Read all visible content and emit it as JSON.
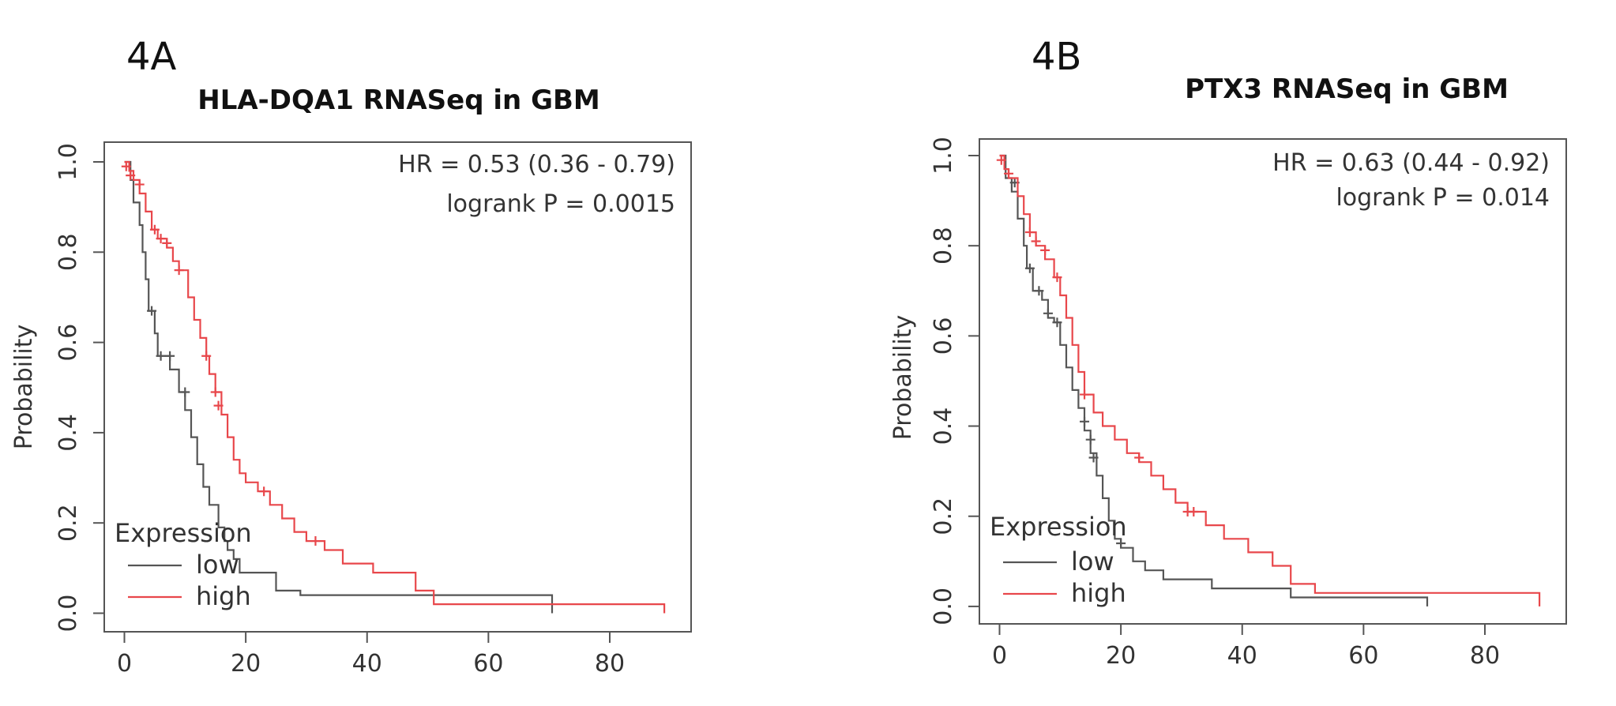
{
  "chart_data": [
    {
      "type": "line",
      "panel_label": "4A",
      "title": "HLA-DQA1 RNASeq in GBM",
      "ylabel": "Probability",
      "xlim": [
        0,
        90
      ],
      "ylim": [
        0,
        1
      ],
      "x_ticks": [
        0,
        20,
        40,
        60,
        80
      ],
      "y_ticks": [
        0.0,
        0.2,
        0.4,
        0.6,
        0.8,
        1.0
      ],
      "x_tick_labels": [
        "0",
        "20",
        "40",
        "60",
        "80"
      ],
      "y_tick_labels": [
        "0.0",
        "0.2",
        "0.4",
        "0.6",
        "0.8",
        "1.0"
      ],
      "stats": [
        "HR = 0.53 (0.36 - 0.79)",
        "logrank P = 0.0015"
      ],
      "legend": {
        "title": "Expression",
        "position": "bottom-left"
      },
      "series": [
        {
          "name": "low",
          "color": "#555555",
          "steps": [
            [
              0,
              1.0
            ],
            [
              1,
              0.96
            ],
            [
              1.5,
              0.91
            ],
            [
              2.5,
              0.86
            ],
            [
              3,
              0.8
            ],
            [
              3.5,
              0.74
            ],
            [
              4,
              0.67
            ],
            [
              5,
              0.62
            ],
            [
              5.5,
              0.57
            ],
            [
              7.5,
              0.54
            ],
            [
              9,
              0.49
            ],
            [
              10,
              0.45
            ],
            [
              11,
              0.39
            ],
            [
              12,
              0.33
            ],
            [
              13,
              0.28
            ],
            [
              14,
              0.24
            ],
            [
              15.5,
              0.19
            ],
            [
              16.5,
              0.16
            ],
            [
              17,
              0.14
            ],
            [
              18,
              0.12
            ],
            [
              19,
              0.09
            ],
            [
              25,
              0.05
            ],
            [
              29,
              0.04
            ],
            [
              70.5,
              0.04
            ],
            [
              70.5,
              0.0
            ]
          ],
          "censors": [
            [
              4.5,
              0.67
            ],
            [
              6,
              0.57
            ],
            [
              7.5,
              0.57
            ],
            [
              10,
              0.49
            ]
          ]
        },
        {
          "name": "high",
          "color": "#e8474b",
          "steps": [
            [
              0,
              1.0
            ],
            [
              0.8,
              0.98
            ],
            [
              1.5,
              0.96
            ],
            [
              2.5,
              0.93
            ],
            [
              3.5,
              0.89
            ],
            [
              4.5,
              0.85
            ],
            [
              5.5,
              0.83
            ],
            [
              7,
              0.81
            ],
            [
              8,
              0.78
            ],
            [
              9,
              0.76
            ],
            [
              10.5,
              0.7
            ],
            [
              11.5,
              0.65
            ],
            [
              12.5,
              0.61
            ],
            [
              13.5,
              0.57
            ],
            [
              14,
              0.53
            ],
            [
              15,
              0.49
            ],
            [
              16,
              0.44
            ],
            [
              17,
              0.39
            ],
            [
              18,
              0.34
            ],
            [
              19,
              0.31
            ],
            [
              20,
              0.29
            ],
            [
              22,
              0.27
            ],
            [
              24,
              0.24
            ],
            [
              26,
              0.21
            ],
            [
              28,
              0.18
            ],
            [
              30,
              0.16
            ],
            [
              33,
              0.14
            ],
            [
              36,
              0.11
            ],
            [
              41,
              0.09
            ],
            [
              48,
              0.05
            ],
            [
              51,
              0.02
            ],
            [
              89,
              0.02
            ],
            [
              89,
              0.0
            ]
          ],
          "censors": [
            [
              0.3,
              0.99
            ],
            [
              1,
              0.97
            ],
            [
              2.5,
              0.95
            ],
            [
              5,
              0.85
            ],
            [
              6,
              0.83
            ],
            [
              7,
              0.82
            ],
            [
              9,
              0.76
            ],
            [
              13.5,
              0.57
            ],
            [
              15,
              0.49
            ],
            [
              15.5,
              0.46
            ],
            [
              23,
              0.27
            ],
            [
              31.5,
              0.16
            ]
          ]
        }
      ]
    },
    {
      "type": "line",
      "panel_label": "4B",
      "title": "PTX3 RNASeq in GBM",
      "ylabel": "Probability",
      "xlim": [
        0,
        90
      ],
      "ylim": [
        0,
        1
      ],
      "x_ticks": [
        0,
        20,
        40,
        60,
        80
      ],
      "y_ticks": [
        0.0,
        0.2,
        0.4,
        0.6,
        0.8,
        1.0
      ],
      "x_tick_labels": [
        "0",
        "20",
        "40",
        "60",
        "80"
      ],
      "y_tick_labels": [
        "0.0",
        "0.2",
        "0.4",
        "0.6",
        "0.8",
        "1.0"
      ],
      "stats": [
        "HR = 0.63 (0.44 - 0.92)",
        "logrank P = 0.014"
      ],
      "legend": {
        "title": "Expression",
        "position": "bottom-left"
      },
      "series": [
        {
          "name": "low",
          "color": "#555555",
          "steps": [
            [
              0,
              1.0
            ],
            [
              1,
              0.95
            ],
            [
              2,
              0.92
            ],
            [
              3,
              0.86
            ],
            [
              4,
              0.8
            ],
            [
              4.5,
              0.75
            ],
            [
              5.5,
              0.7
            ],
            [
              7,
              0.68
            ],
            [
              8,
              0.64
            ],
            [
              9,
              0.63
            ],
            [
              10,
              0.58
            ],
            [
              11,
              0.53
            ],
            [
              12,
              0.48
            ],
            [
              13,
              0.44
            ],
            [
              14,
              0.39
            ],
            [
              15,
              0.34
            ],
            [
              16,
              0.29
            ],
            [
              17,
              0.24
            ],
            [
              18,
              0.19
            ],
            [
              19,
              0.15
            ],
            [
              20,
              0.13
            ],
            [
              22,
              0.1
            ],
            [
              24,
              0.08
            ],
            [
              27,
              0.06
            ],
            [
              35,
              0.04
            ],
            [
              48,
              0.02
            ],
            [
              70.5,
              0.02
            ],
            [
              70.5,
              0.0
            ]
          ],
          "censors": [
            [
              2.5,
              0.94
            ],
            [
              5,
              0.75
            ],
            [
              6.5,
              0.7
            ],
            [
              8,
              0.65
            ],
            [
              9.5,
              0.63
            ],
            [
              14,
              0.41
            ],
            [
              15,
              0.37
            ],
            [
              15.5,
              0.33
            ],
            [
              20,
              0.14
            ]
          ]
        },
        {
          "name": "high",
          "color": "#e8474b",
          "steps": [
            [
              0,
              1.0
            ],
            [
              0.8,
              0.97
            ],
            [
              1.5,
              0.95
            ],
            [
              3,
              0.91
            ],
            [
              4,
              0.87
            ],
            [
              5,
              0.83
            ],
            [
              6,
              0.8
            ],
            [
              7.5,
              0.77
            ],
            [
              9,
              0.73
            ],
            [
              10,
              0.69
            ],
            [
              11,
              0.64
            ],
            [
              12,
              0.58
            ],
            [
              13,
              0.52
            ],
            [
              14,
              0.47
            ],
            [
              15.5,
              0.43
            ],
            [
              17,
              0.4
            ],
            [
              19,
              0.37
            ],
            [
              21,
              0.34
            ],
            [
              23,
              0.32
            ],
            [
              25,
              0.29
            ],
            [
              27,
              0.26
            ],
            [
              29,
              0.23
            ],
            [
              31,
              0.21
            ],
            [
              34,
              0.18
            ],
            [
              37,
              0.15
            ],
            [
              41,
              0.12
            ],
            [
              45,
              0.09
            ],
            [
              48,
              0.05
            ],
            [
              52,
              0.03
            ],
            [
              89,
              0.03
            ],
            [
              89,
              0.0
            ]
          ],
          "censors": [
            [
              0.3,
              0.99
            ],
            [
              1.5,
              0.96
            ],
            [
              5,
              0.83
            ],
            [
              6,
              0.81
            ],
            [
              7.5,
              0.79
            ],
            [
              9.5,
              0.73
            ],
            [
              14,
              0.47
            ],
            [
              23,
              0.33
            ],
            [
              31,
              0.21
            ],
            [
              32,
              0.21
            ]
          ]
        }
      ]
    }
  ]
}
